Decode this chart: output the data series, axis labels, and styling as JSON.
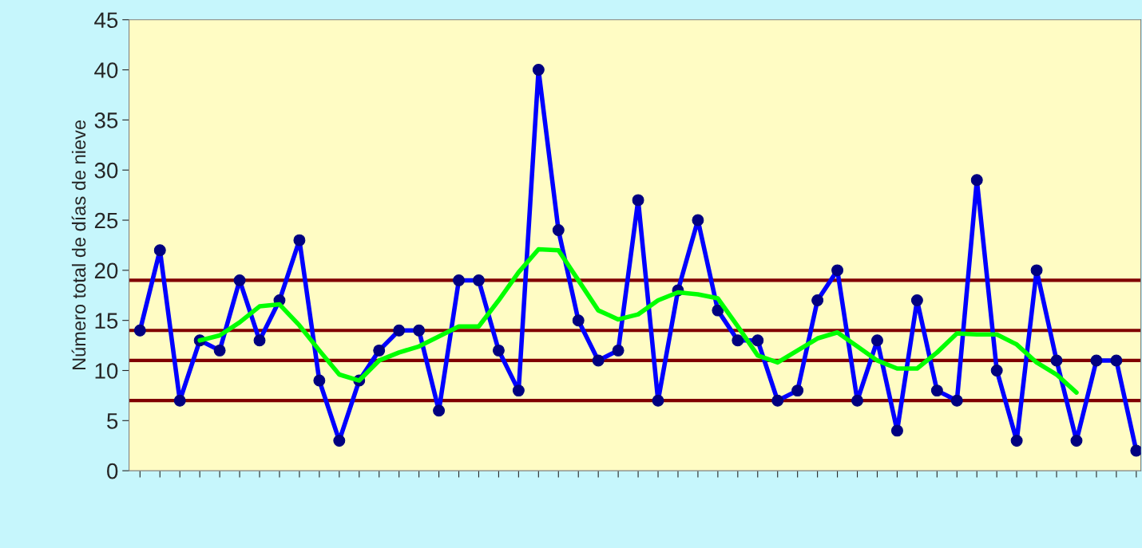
{
  "chart_data": {
    "type": "line",
    "ylabel": "Número total de días de nieve",
    "categories": [
      null,
      null,
      null,
      null,
      null,
      null,
      null,
      null,
      null,
      null,
      null,
      null,
      null,
      null,
      null,
      null,
      null,
      null,
      null,
      null,
      null,
      null,
      null,
      null,
      null,
      null,
      null,
      null,
      null,
      null,
      null,
      null,
      null,
      null,
      null,
      null,
      null,
      null,
      null,
      null,
      null,
      null,
      null,
      null,
      null,
      null,
      null,
      null,
      null,
      null,
      null
    ],
    "series": [
      {
        "color": "#0000ff",
        "marker": "circle",
        "values": [
          14,
          22,
          7,
          13,
          12,
          19,
          13,
          17,
          23,
          9,
          3,
          9,
          12,
          14,
          14,
          6,
          19,
          19,
          12,
          8,
          40,
          24,
          15,
          11,
          12,
          27,
          7,
          18,
          25,
          16,
          13,
          13,
          7,
          8,
          17,
          20,
          7,
          13,
          4,
          17,
          8,
          7,
          29,
          10,
          3,
          20,
          11,
          3,
          11,
          11,
          2
        ]
      },
      {
        "color": "#00ff00",
        "marker": "none",
        "values": [
          null,
          null,
          null,
          13,
          13.5,
          14.8,
          16.4,
          16.6,
          14.5,
          12,
          9.6,
          9,
          11,
          11.8,
          12.4,
          13.4,
          14.4,
          14.4,
          17,
          19.8,
          22.1,
          22,
          19,
          16,
          15.1,
          15.6,
          17,
          17.8,
          17.6,
          17.2,
          14.4,
          11.5,
          10.8,
          12,
          13.2,
          13.8,
          12.4,
          11,
          10.2,
          10.2,
          11.8,
          13.7,
          13.6,
          13.6,
          12.6,
          10.8,
          9.6,
          7.8,
          null,
          null,
          null
        ]
      }
    ],
    "ref_lines": [
      {
        "axis": "y",
        "value": 19,
        "color": "#800000"
      },
      {
        "axis": "y",
        "value": 14,
        "color": "#800000"
      },
      {
        "axis": "y",
        "value": 11,
        "color": "#800000"
      },
      {
        "axis": "y",
        "value": 7,
        "color": "#800000"
      }
    ],
    "ylim": [
      0,
      45
    ],
    "yticks": [
      0,
      5,
      10,
      15,
      20,
      25,
      30,
      35,
      40,
      45
    ],
    "grid": false,
    "legend": false
  }
}
